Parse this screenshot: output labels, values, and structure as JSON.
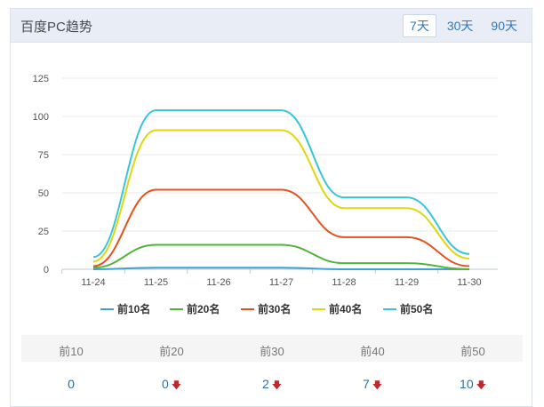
{
  "header": {
    "title": "百度PC趋势",
    "tabs": [
      {
        "label": "7天",
        "active": true
      },
      {
        "label": "30天",
        "active": false
      },
      {
        "label": "90天",
        "active": false
      }
    ]
  },
  "chart_data": {
    "type": "line",
    "categories": [
      "11-24",
      "11-25",
      "11-26",
      "11-27",
      "11-28",
      "11-29",
      "11-30"
    ],
    "yticks": [
      0,
      25,
      50,
      75,
      100,
      125
    ],
    "ylim": [
      0,
      125
    ],
    "grid": true,
    "legend_position": "bottom",
    "series": [
      {
        "name": "前10名",
        "color": "#3fa2d6",
        "values": [
          0,
          1,
          1,
          1,
          0,
          0,
          0
        ]
      },
      {
        "name": "前20名",
        "color": "#52b33a",
        "values": [
          1,
          16,
          16,
          16,
          4,
          4,
          0
        ]
      },
      {
        "name": "前30名",
        "color": "#e2541e",
        "values": [
          2,
          52,
          52,
          52,
          21,
          21,
          2
        ]
      },
      {
        "name": "前40名",
        "color": "#dfd60e",
        "values": [
          5,
          91,
          91,
          91,
          40,
          40,
          7
        ]
      },
      {
        "name": "前50名",
        "color": "#36c6d9",
        "values": [
          8,
          104,
          104,
          104,
          47,
          47,
          10
        ]
      }
    ]
  },
  "summary": {
    "columns": [
      {
        "label": "前10",
        "value": "0",
        "down": false
      },
      {
        "label": "前20",
        "value": "0",
        "down": true
      },
      {
        "label": "前30",
        "value": "2",
        "down": true
      },
      {
        "label": "前40",
        "value": "7",
        "down": true
      },
      {
        "label": "前50",
        "value": "10",
        "down": true
      }
    ]
  }
}
